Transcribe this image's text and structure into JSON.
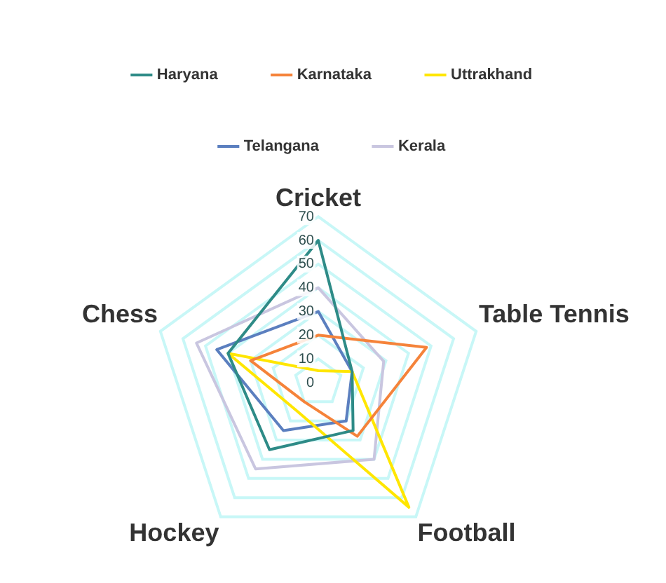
{
  "chart_data": {
    "type": "radar",
    "categories": [
      "Cricket",
      "Table Tennis",
      "Football",
      "Hockey",
      "Chess"
    ],
    "series": [
      {
        "name": "Haryana",
        "color": "#2e8b87",
        "values": [
          60,
          15,
          25,
          35,
          40
        ]
      },
      {
        "name": "Karnataka",
        "color": "#f5833a",
        "values": [
          20,
          48,
          28,
          10,
          30
        ]
      },
      {
        "name": "Uttrakhand",
        "color": "#ffe600",
        "values": [
          5,
          15,
          65,
          15,
          40
        ]
      },
      {
        "name": "Telangana",
        "color": "#5b7fbf",
        "values": [
          30,
          15,
          20,
          25,
          45
        ]
      },
      {
        "name": "Kerala",
        "color": "#c9c6e0",
        "values": [
          40,
          29,
          40,
          45,
          54
        ]
      }
    ],
    "ylim": [
      0,
      70
    ],
    "yticks": [
      0,
      10,
      20,
      30,
      40,
      50,
      60,
      70
    ],
    "grid": true,
    "legend": "top"
  }
}
